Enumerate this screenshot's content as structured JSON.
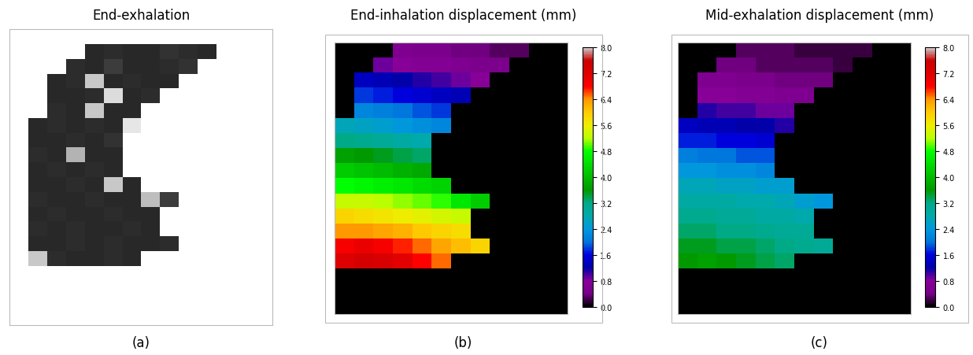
{
  "chart_data": [
    {
      "type": "heatmap",
      "title": "End-exhalation",
      "label": "(a)",
      "color": "gray",
      "tick_labels": false,
      "range": [
        0,
        255
      ],
      "cells": [
        [
          null,
          null,
          null,
          40,
          45,
          40,
          40,
          50,
          45,
          40,
          null,
          null
        ],
        [
          null,
          null,
          45,
          40,
          60,
          40,
          40,
          45,
          50,
          null,
          null,
          null
        ],
        [
          null,
          40,
          45,
          200,
          40,
          45,
          40,
          40,
          null,
          null,
          null,
          null
        ],
        [
          null,
          40,
          40,
          45,
          220,
          40,
          45,
          null,
          null,
          null,
          null,
          null
        ],
        [
          null,
          45,
          40,
          200,
          40,
          40,
          null,
          null,
          null,
          null,
          null,
          null
        ],
        [
          40,
          45,
          40,
          45,
          40,
          230,
          null,
          null,
          null,
          null,
          null,
          null
        ],
        [
          40,
          40,
          45,
          40,
          50,
          null,
          null,
          null,
          null,
          null,
          null,
          null
        ],
        [
          45,
          40,
          180,
          40,
          40,
          null,
          null,
          null,
          null,
          null,
          null,
          null
        ],
        [
          40,
          45,
          40,
          45,
          40,
          null,
          null,
          null,
          null,
          null,
          null,
          null
        ],
        [
          40,
          40,
          45,
          40,
          200,
          40,
          null,
          null,
          null,
          null,
          null,
          null
        ],
        [
          45,
          40,
          40,
          45,
          40,
          40,
          190,
          60,
          null,
          null,
          null,
          null
        ],
        [
          40,
          45,
          40,
          40,
          45,
          40,
          40,
          null,
          null,
          null,
          null,
          null
        ],
        [
          45,
          40,
          45,
          40,
          40,
          45,
          40,
          null,
          null,
          null,
          null,
          null
        ],
        [
          40,
          40,
          45,
          40,
          45,
          40,
          40,
          45,
          null,
          null,
          null,
          null
        ],
        [
          200,
          45,
          40,
          40,
          45,
          40,
          null,
          null,
          null,
          null,
          null,
          null
        ],
        [
          null,
          null,
          null,
          null,
          null,
          null,
          null,
          null,
          null,
          null,
          null,
          null
        ],
        [
          null,
          null,
          null,
          null,
          null,
          null,
          null,
          null,
          null,
          null,
          null,
          null
        ],
        [
          null,
          null,
          null,
          null,
          null,
          null,
          null,
          null,
          null,
          null,
          null,
          null
        ]
      ]
    },
    {
      "type": "heatmap",
      "title": "End-inhalation displacement (mm)",
      "label": "(b)",
      "color": "nipy_spectral",
      "tick_labels": false,
      "colorbar": {
        "range": [
          0.0,
          8.0
        ],
        "ticks": [
          {
            "value": 0.0,
            "label": "0.0"
          },
          0.8,
          1.6,
          2.4,
          3.2,
          {
            "value": 4.0,
            "label": "4.0"
          },
          4.8,
          5.6,
          6.4,
          7.2,
          {
            "value": 8.0,
            "label": "8.0"
          }
        ]
      },
      "cells": [
        [
          null,
          null,
          null,
          0.6,
          0.5,
          0.5,
          0.4,
          0.4,
          0.3,
          0.3,
          null,
          null
        ],
        [
          null,
          null,
          0.9,
          0.8,
          0.7,
          0.7,
          0.6,
          0.5,
          0.5,
          null,
          null,
          null
        ],
        [
          null,
          1.4,
          1.3,
          1.2,
          1.1,
          1.0,
          0.9,
          0.8,
          null,
          null,
          null,
          null
        ],
        [
          null,
          1.8,
          1.7,
          1.6,
          1.5,
          1.4,
          1.3,
          null,
          null,
          null,
          null,
          null
        ],
        [
          null,
          2.2,
          2.1,
          2.0,
          1.9,
          1.8,
          null,
          null,
          null,
          null,
          null,
          null
        ],
        [
          2.7,
          2.6,
          2.5,
          2.4,
          2.3,
          2.2,
          null,
          null,
          null,
          null,
          null,
          null
        ],
        [
          3.2,
          3.1,
          3.0,
          2.9,
          2.8,
          null,
          null,
          null,
          null,
          null,
          null,
          null
        ],
        [
          3.7,
          3.6,
          3.5,
          3.4,
          3.3,
          null,
          null,
          null,
          null,
          null,
          null,
          null
        ],
        [
          4.2,
          4.1,
          4.0,
          3.9,
          3.8,
          null,
          null,
          null,
          null,
          null,
          null,
          null
        ],
        [
          4.8,
          4.7,
          4.6,
          4.5,
          4.4,
          4.3,
          null,
          null,
          null,
          null,
          null,
          null
        ],
        [
          5.3,
          5.3,
          5.2,
          5.1,
          5.0,
          4.9,
          4.5,
          4.2,
          null,
          null,
          null,
          null
        ],
        [
          5.9,
          5.8,
          5.7,
          5.6,
          5.5,
          5.4,
          5.3,
          null,
          null,
          null,
          null,
          null
        ],
        [
          6.4,
          6.4,
          6.3,
          6.2,
          6.0,
          5.9,
          5.8,
          null,
          null,
          null,
          null,
          null
        ],
        [
          6.9,
          7.0,
          6.9,
          6.7,
          6.5,
          6.3,
          6.1,
          5.9,
          null,
          null,
          null,
          null
        ],
        [
          7.2,
          7.4,
          7.3,
          7.1,
          6.8,
          6.5,
          null,
          null,
          null,
          null,
          null,
          null
        ],
        [
          null,
          null,
          null,
          null,
          null,
          null,
          null,
          null,
          null,
          null,
          null,
          null
        ],
        [
          null,
          null,
          null,
          null,
          null,
          null,
          null,
          null,
          null,
          null,
          null,
          null
        ],
        [
          null,
          null,
          null,
          null,
          null,
          null,
          null,
          null,
          null,
          null,
          null,
          null
        ]
      ]
    },
    {
      "type": "heatmap",
      "title": "Mid-exhalation displacement (mm)",
      "label": "(c)",
      "color": "nipy_spectral",
      "tick_labels": false,
      "colorbar": {
        "range": [
          0.0,
          8.0
        ],
        "ticks": [
          {
            "value": 0.0,
            "label": "0.0"
          },
          0.8,
          1.6,
          2.4,
          3.2,
          {
            "value": 4.0,
            "label": "4.0"
          },
          4.8,
          5.6,
          6.4,
          7.2,
          {
            "value": 8.0,
            "label": "8.0"
          }
        ]
      },
      "cells": [
        [
          null,
          null,
          null,
          0.3,
          0.3,
          0.3,
          0.2,
          0.2,
          0.2,
          0.2,
          null,
          null
        ],
        [
          null,
          null,
          0.4,
          0.4,
          0.3,
          0.3,
          0.3,
          0.3,
          0.2,
          null,
          null,
          null
        ],
        [
          null,
          0.6,
          0.6,
          0.5,
          0.5,
          0.4,
          0.4,
          0.4,
          null,
          null,
          null,
          null
        ],
        [
          null,
          0.8,
          0.8,
          0.7,
          0.7,
          0.6,
          0.6,
          null,
          null,
          null,
          null,
          null
        ],
        [
          null,
          1.1,
          1.0,
          1.0,
          0.9,
          0.9,
          null,
          null,
          null,
          null,
          null,
          null
        ],
        [
          1.4,
          1.3,
          1.3,
          1.2,
          1.2,
          1.1,
          null,
          null,
          null,
          null,
          null,
          null
        ],
        [
          1.7,
          1.7,
          1.6,
          1.6,
          1.5,
          null,
          null,
          null,
          null,
          null,
          null,
          null
        ],
        [
          2.1,
          2.0,
          2.0,
          1.9,
          1.9,
          null,
          null,
          null,
          null,
          null,
          null,
          null
        ],
        [
          2.4,
          2.4,
          2.3,
          2.3,
          2.2,
          null,
          null,
          null,
          null,
          null,
          null,
          null
        ],
        [
          2.7,
          2.7,
          2.6,
          2.6,
          2.5,
          2.5,
          null,
          null,
          null,
          null,
          null,
          null
        ],
        [
          2.9,
          2.9,
          2.9,
          2.8,
          2.8,
          2.7,
          2.5,
          2.4,
          null,
          null,
          null,
          null
        ],
        [
          3.1,
          3.1,
          3.0,
          3.0,
          2.9,
          2.9,
          2.8,
          null,
          null,
          null,
          null,
          null
        ],
        [
          3.3,
          3.3,
          3.2,
          3.2,
          3.1,
          3.0,
          3.0,
          null,
          null,
          null,
          null,
          null
        ],
        [
          3.5,
          3.5,
          3.4,
          3.4,
          3.3,
          3.2,
          3.1,
          3.0,
          null,
          null,
          null,
          null
        ],
        [
          3.6,
          3.7,
          3.6,
          3.5,
          3.4,
          3.3,
          null,
          null,
          null,
          null,
          null,
          null
        ],
        [
          null,
          null,
          null,
          null,
          null,
          null,
          null,
          null,
          null,
          null,
          null,
          null
        ],
        [
          null,
          null,
          null,
          null,
          null,
          null,
          null,
          null,
          null,
          null,
          null,
          null
        ],
        [
          null,
          null,
          null,
          null,
          null,
          null,
          null,
          null,
          null,
          null,
          null,
          null
        ]
      ]
    }
  ]
}
